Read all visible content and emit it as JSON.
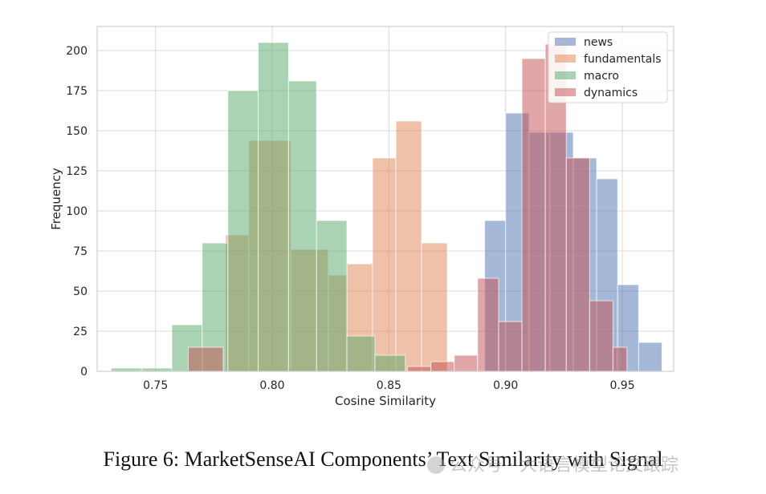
{
  "chart_data": {
    "type": "histogram",
    "title": "",
    "xlabel": "Cosine Similarity",
    "ylabel": "Frequency",
    "xlim": [
      0.725,
      0.972
    ],
    "ylim": [
      0,
      215
    ],
    "xticks": [
      0.75,
      0.8,
      0.85,
      0.9,
      0.95
    ],
    "xtick_labels": [
      "0.75",
      "0.80",
      "0.85",
      "0.90",
      "0.95"
    ],
    "yticks": [
      0,
      25,
      50,
      75,
      100,
      125,
      150,
      175,
      200
    ],
    "ytick_labels": [
      "0",
      "25",
      "50",
      "75",
      "100",
      "125",
      "150",
      "175",
      "200"
    ],
    "grid": true,
    "legend_position": "top-right",
    "series": [
      {
        "name": "news",
        "color": "#4c72b0",
        "bin_edges": [
          0.735,
          0.744,
          0.75,
          0.755,
          0.763,
          0.776,
          0.79,
          0.808,
          0.824,
          0.848,
          0.864,
          0.874,
          0.881,
          0.891,
          0.9,
          0.91,
          0.919,
          0.929,
          0.939,
          0.948,
          0.957,
          0.967
        ],
        "counts": [
          0,
          0,
          0,
          0,
          0,
          0,
          0,
          0,
          0,
          0,
          0,
          0,
          0,
          94,
          161,
          149,
          149,
          133,
          120,
          54,
          18
        ]
      },
      {
        "name": "fundamentals",
        "color": "#dd8452",
        "bin_edges": [
          0.78,
          0.79,
          0.808,
          0.824,
          0.832,
          0.843,
          0.853,
          0.864,
          0.875,
          0.891
        ],
        "counts": [
          85,
          144,
          76,
          60,
          67,
          133,
          156,
          80,
          0
        ]
      },
      {
        "name": "macro",
        "color": "#55a868",
        "bin_edges": [
          0.731,
          0.744,
          0.757,
          0.77,
          0.781,
          0.794,
          0.807,
          0.819,
          0.832,
          0.844,
          0.857,
          0.869
        ],
        "counts": [
          2,
          2,
          29,
          80,
          175,
          205,
          181,
          94,
          22,
          10,
          0
        ]
      },
      {
        "name": "dynamics",
        "color": "#c44e52",
        "bin_edges": [
          0.764,
          0.779,
          0.858,
          0.868,
          0.878,
          0.888,
          0.897,
          0.907,
          0.917,
          0.926,
          0.936,
          0.946,
          0.952
        ],
        "counts": [
          15,
          0,
          3,
          6,
          10,
          58,
          31,
          195,
          204,
          133,
          44,
          15
        ]
      }
    ]
  },
  "caption": "Figure 6: MarketSenseAI Components’ Text Similarity with Signal",
  "watermark": "公众号 · 大语言模型论文跟踪"
}
